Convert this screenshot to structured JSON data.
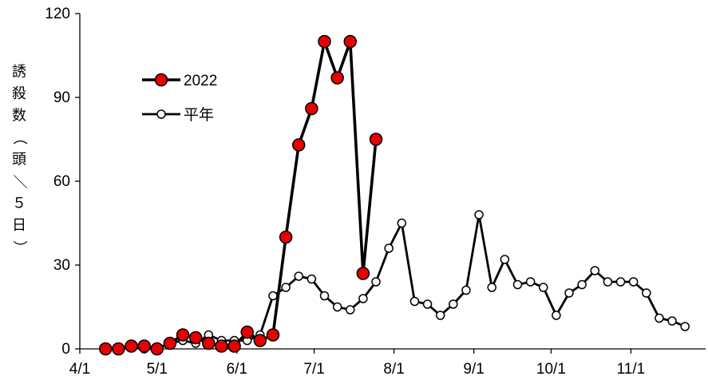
{
  "chart_data": {
    "type": "line",
    "title": "",
    "xlabel": "",
    "ylabel": "誘殺数（頭／５日）",
    "ylim": [
      0,
      120
    ],
    "yticks": [
      0,
      30,
      60,
      90,
      120
    ],
    "xlim": [
      "4/1",
      "11/30"
    ],
    "xticks": [
      "4/1",
      "5/1",
      "6/1",
      "7/1",
      "8/1",
      "9/1",
      "10/1",
      "11/1"
    ],
    "legend_position": "upper-left",
    "grid": false,
    "series": [
      {
        "name": "2022",
        "color": "#e60000",
        "marker": "filled-circle",
        "points": [
          [
            "4/11",
            0
          ],
          [
            "4/16",
            0
          ],
          [
            "4/21",
            1
          ],
          [
            "4/26",
            1
          ],
          [
            "5/1",
            0
          ],
          [
            "5/6",
            2
          ],
          [
            "5/11",
            5
          ],
          [
            "5/16",
            4
          ],
          [
            "5/21",
            2
          ],
          [
            "5/26",
            1
          ],
          [
            "5/31",
            1
          ],
          [
            "6/5",
            6
          ],
          [
            "6/10",
            3
          ],
          [
            "6/15",
            5
          ],
          [
            "6/20",
            40
          ],
          [
            "6/25",
            73
          ],
          [
            "6/30",
            86
          ],
          [
            "7/5",
            110
          ],
          [
            "7/10",
            97
          ],
          [
            "7/15",
            110
          ],
          [
            "7/20",
            27
          ],
          [
            "7/25",
            75
          ]
        ]
      },
      {
        "name": "平年",
        "color": "#ffffff",
        "marker": "open-circle",
        "points": [
          [
            "4/11",
            0
          ],
          [
            "4/16",
            0
          ],
          [
            "4/21",
            1
          ],
          [
            "4/26",
            0
          ],
          [
            "5/1",
            0
          ],
          [
            "5/6",
            2
          ],
          [
            "5/11",
            3
          ],
          [
            "5/16",
            2
          ],
          [
            "5/21",
            5
          ],
          [
            "5/26",
            3
          ],
          [
            "5/31",
            3
          ],
          [
            "6/5",
            3
          ],
          [
            "6/10",
            5
          ],
          [
            "6/15",
            19
          ],
          [
            "6/20",
            22
          ],
          [
            "6/25",
            26
          ],
          [
            "6/30",
            25
          ],
          [
            "7/5",
            19
          ],
          [
            "7/10",
            15
          ],
          [
            "7/15",
            14
          ],
          [
            "7/20",
            18
          ],
          [
            "7/25",
            24
          ],
          [
            "7/30",
            36
          ],
          [
            "8/4",
            45
          ],
          [
            "8/9",
            17
          ],
          [
            "8/14",
            16
          ],
          [
            "8/19",
            12
          ],
          [
            "8/24",
            16
          ],
          [
            "8/29",
            21
          ],
          [
            "9/3",
            48
          ],
          [
            "9/8",
            22
          ],
          [
            "9/13",
            32
          ],
          [
            "9/18",
            23
          ],
          [
            "9/23",
            24
          ],
          [
            "9/28",
            22
          ],
          [
            "10/3",
            12
          ],
          [
            "10/8",
            20
          ],
          [
            "10/13",
            23
          ],
          [
            "10/18",
            28
          ],
          [
            "10/23",
            24
          ],
          [
            "10/28",
            24
          ],
          [
            "11/2",
            24
          ],
          [
            "11/7",
            20
          ],
          [
            "11/12",
            11
          ],
          [
            "11/17",
            10
          ],
          [
            "11/22",
            8
          ]
        ]
      }
    ]
  }
}
